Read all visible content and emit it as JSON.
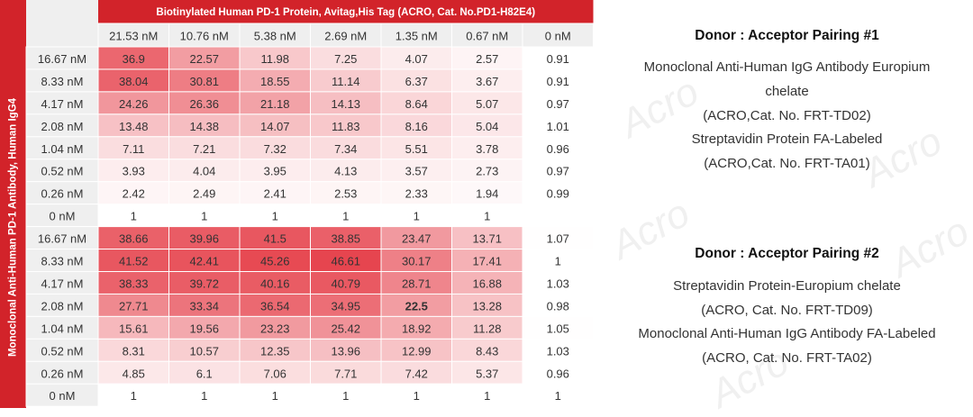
{
  "chart_data": {
    "type": "heatmap",
    "title": "Biotinylated Human PD-1 Protein, Avitag,His Tag (ACRO, Cat. No.PD1-H82E4)",
    "ylabel": "Monoclonal Anti-Human PD-1 Antibody, Human IgG4",
    "columns": [
      "21.53 nM",
      "10.76 nM",
      "5.38 nM",
      "2.69 nM",
      "1.35 nM",
      "0.67 nM",
      "0 nM"
    ],
    "groups": [
      {
        "rows": [
          "16.67 nM",
          "8.33 nM",
          "4.17 nM",
          "2.08 nM",
          "1.04 nM",
          "0.52 nM",
          "0.26 nM",
          "0 nM"
        ],
        "values": [
          [
            "36.9",
            "22.57",
            "11.98",
            "7.25",
            "4.07",
            "2.57",
            "0.91"
          ],
          [
            "38.04",
            "30.81",
            "18.55",
            "11.14",
            "6.37",
            "3.67",
            "0.91"
          ],
          [
            "24.26",
            "26.36",
            "21.18",
            "14.13",
            "8.64",
            "5.07",
            "0.97"
          ],
          [
            "13.48",
            "14.38",
            "14.07",
            "11.83",
            "8.16",
            "5.04",
            "1.01"
          ],
          [
            "7.11",
            "7.21",
            "7.32",
            "7.34",
            "5.51",
            "3.78",
            "0.96"
          ],
          [
            "3.93",
            "4.04",
            "3.95",
            "4.13",
            "3.57",
            "2.73",
            "0.97"
          ],
          [
            "2.42",
            "2.49",
            "2.41",
            "2.53",
            "2.33",
            "1.94",
            "0.99"
          ],
          [
            "1",
            "1",
            "1",
            "1",
            "1",
            "1",
            ""
          ]
        ]
      },
      {
        "rows": [
          "16.67 nM",
          "8.33 nM",
          "4.17 nM",
          "2.08 nM",
          "1.04 nM",
          "0.52 nM",
          "0.26 nM",
          "0 nM"
        ],
        "values": [
          [
            "38.66",
            "39.96",
            "41.5",
            "38.85",
            "23.47",
            "13.71",
            "1.07"
          ],
          [
            "41.52",
            "42.41",
            "45.26",
            "46.61",
            "30.17",
            "17.41",
            "1"
          ],
          [
            "38.33",
            "39.72",
            "40.16",
            "40.79",
            "28.71",
            "16.88",
            "1.03"
          ],
          [
            "27.71",
            "33.34",
            "36.54",
            "34.95",
            "22.5",
            "13.28",
            "0.98"
          ],
          [
            "15.61",
            "19.56",
            "23.23",
            "25.42",
            "18.92",
            "11.28",
            "1.05"
          ],
          [
            "8.31",
            "10.57",
            "12.35",
            "13.96",
            "12.99",
            "8.43",
            "1.03"
          ],
          [
            "4.85",
            "6.1",
            "7.06",
            "7.71",
            "7.42",
            "5.37",
            "0.96"
          ],
          [
            "1",
            "1",
            "1",
            "1",
            "1",
            "1",
            "1"
          ]
        ]
      }
    ],
    "highlighted_cell": {
      "group": 1,
      "row": 3,
      "col": 4
    },
    "max_value": 46.61
  },
  "colors": {
    "header_red": "#d2232a",
    "heat_max": "#e6454f",
    "heat_min": "#ffffff",
    "header_cell": "#efefef",
    "grid": "#ffffff",
    "text": "#333333"
  },
  "pairings": [
    {
      "title": "Donor : Acceptor Pairing #1",
      "lines": [
        "Monoclonal Anti-Human IgG Antibody Europium",
        "chelate",
        "(ACRO,Cat. No. FRT-TD02)",
        "Streptavidin Protein FA-Labeled",
        "(ACRO,Cat. No. FRT-TA01)"
      ]
    },
    {
      "title": "Donor : Acceptor Pairing #2",
      "lines": [
        "Streptavidin Protein-Europium chelate",
        "(ACRO, Cat. No. FRT-TD09)",
        "Monoclonal Anti-Human IgG Antibody FA-Labeled",
        "(ACRO, Cat. No. FRT-TA02)"
      ]
    }
  ],
  "watermark_text": "Acro"
}
